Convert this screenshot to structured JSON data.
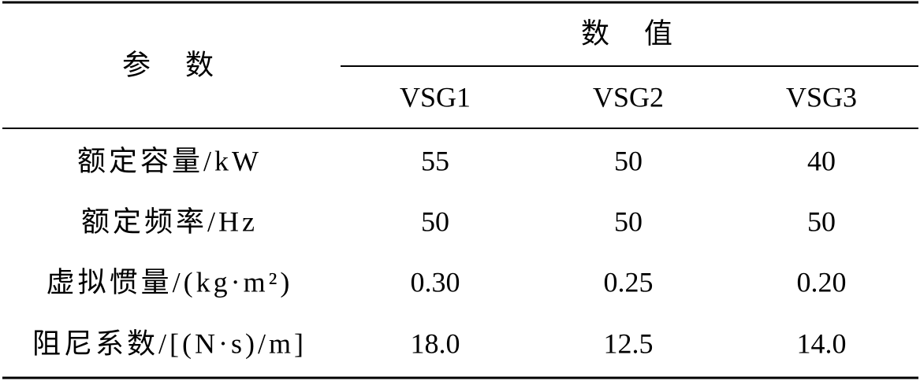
{
  "table": {
    "header": {
      "param": "参　数",
      "value_group": "数　值",
      "columns": [
        "VSG1",
        "VSG2",
        "VSG3"
      ]
    },
    "rows": [
      {
        "label": "额定容量/kW",
        "cells": [
          "55",
          "50",
          "40"
        ]
      },
      {
        "label": "额定频率/Hz",
        "cells": [
          "50",
          "50",
          "50"
        ]
      },
      {
        "label": "虚拟惯量/(kg·m²)",
        "cells": [
          "0.30",
          "0.25",
          "0.20"
        ]
      },
      {
        "label": "阻尼系数/[(N·s)/m]",
        "cells": [
          "18.0",
          "12.5",
          "14.0"
        ]
      }
    ]
  }
}
